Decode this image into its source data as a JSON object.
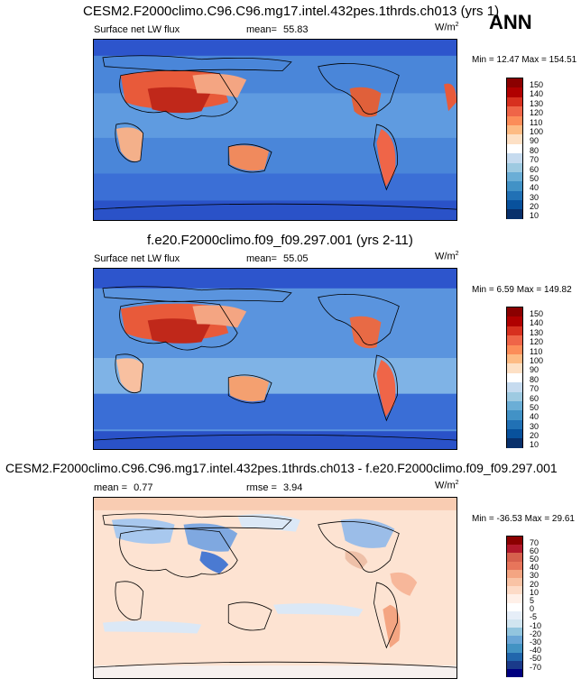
{
  "season": "ANN",
  "panels": [
    {
      "title": "CESM2.F2000climo.C96.C96.mg17.intel.432pes.1thrds.ch013 (yrs 1)",
      "variable": "Surface net LW flux",
      "stat_label": "mean=",
      "stat_value": "55.83",
      "units": "W/m",
      "units_sup": "2",
      "minmax": "Min = 12.47 Max = 154.51",
      "colorbar_labels": [
        "150",
        "140",
        "130",
        "120",
        "110",
        "100",
        "90",
        "80",
        "70",
        "60",
        "50",
        "40",
        "30",
        "20",
        "10"
      ]
    },
    {
      "title": "f.e20.F2000climo.f09_f09.297.001 (yrs 2-11)",
      "variable": "Surface net LW flux",
      "stat_label": "mean=",
      "stat_value": "55.05",
      "units": "W/m",
      "units_sup": "2",
      "minmax": "Min = 6.59 Max = 149.82",
      "colorbar_labels": [
        "150",
        "140",
        "130",
        "120",
        "110",
        "100",
        "90",
        "80",
        "70",
        "60",
        "50",
        "40",
        "30",
        "20",
        "10"
      ]
    },
    {
      "title": "CESM2.F2000climo.C96.C96.mg17.intel.432pes.1thrds.ch013 - f.e20.F2000climo.f09_f09.297.001",
      "stat1_label": "mean =",
      "stat1_value": "0.77",
      "stat2_label": "rmse =",
      "stat2_value": "3.94",
      "units": "W/m",
      "units_sup": "2",
      "minmax": "Min = -36.53 Max = 29.61",
      "colorbar_labels": [
        "70",
        "60",
        "50",
        "40",
        "30",
        "20",
        "10",
        "5",
        "0",
        "-5",
        "-10",
        "-20",
        "-30",
        "-40",
        "-50",
        "-70"
      ]
    }
  ],
  "colors": {
    "abs_scale": [
      "#8b0000",
      "#b00000",
      "#d7301f",
      "#ef6548",
      "#fc8d59",
      "#fdbb84",
      "#fde0c5",
      "#ffffff",
      "#deebf7",
      "#c6dbef",
      "#9ecae1",
      "#6baed6",
      "#4292c6",
      "#2171b5",
      "#08519c",
      "#08306b"
    ],
    "diff_scale": [
      "#8b0000",
      "#b2182b",
      "#d6604d",
      "#e7755b",
      "#f4a582",
      "#f9c3a5",
      "#fddbc7",
      "#fff0e8",
      "#ffffff",
      "#e6eef8",
      "#d1e5f0",
      "#92c5de",
      "#6aa6d6",
      "#4393c3",
      "#2166ac",
      "#1a3a8a",
      "#000080"
    ]
  }
}
